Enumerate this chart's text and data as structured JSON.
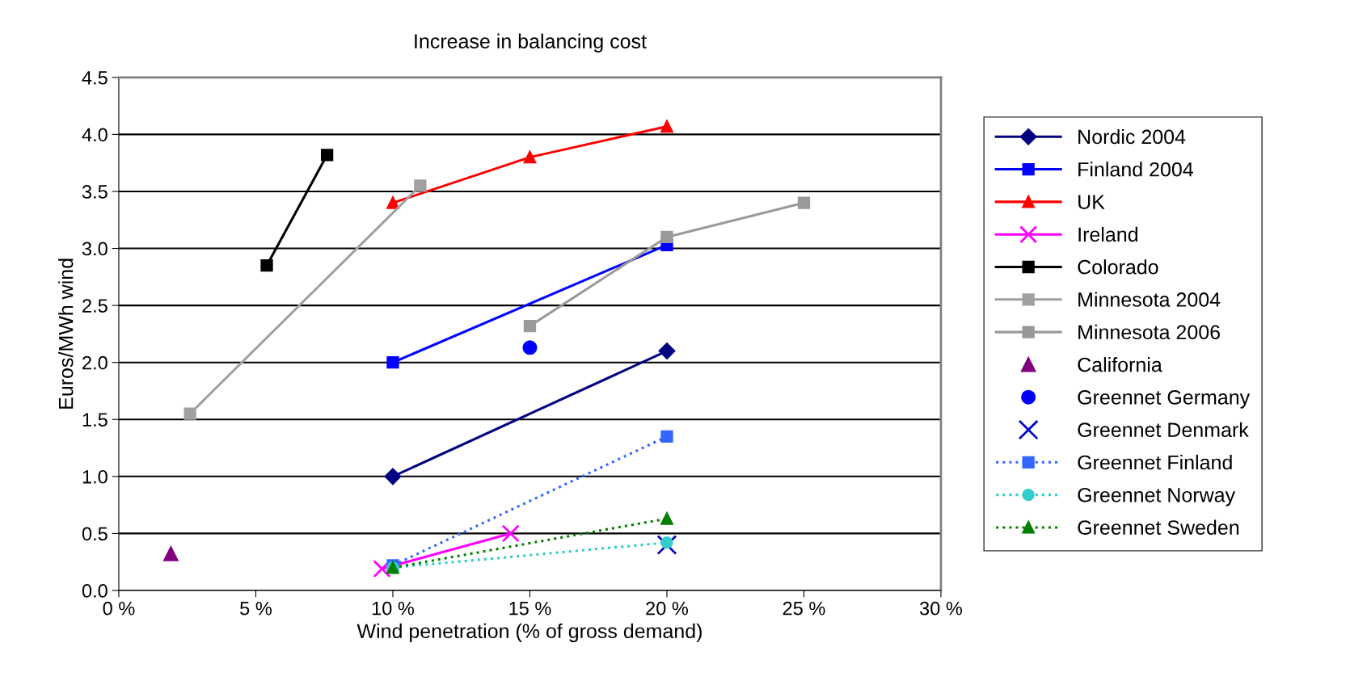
{
  "chart_data": {
    "type": "line",
    "title": "Increase in balancing cost",
    "xlabel": "Wind penetration (% of gross demand)",
    "ylabel": "Euros/MWh wind",
    "xlim": [
      0,
      30
    ],
    "xticks": [
      {
        "value": 0,
        "label": "0 %"
      },
      {
        "value": 5,
        "label": "5 %"
      },
      {
        "value": 10,
        "label": "10 %"
      },
      {
        "value": 15,
        "label": "15 %"
      },
      {
        "value": 20,
        "label": "20 %"
      },
      {
        "value": 25,
        "label": "25 %"
      },
      {
        "value": 30,
        "label": "30 %"
      }
    ],
    "ylim": [
      0,
      4.5
    ],
    "yticks": [
      {
        "value": 0,
        "label": "0.0"
      },
      {
        "value": 0.5,
        "label": "0.5"
      },
      {
        "value": 1,
        "label": "1.0"
      },
      {
        "value": 1.5,
        "label": "1.5"
      },
      {
        "value": 2,
        "label": "2.0"
      },
      {
        "value": 2.5,
        "label": "2.5"
      },
      {
        "value": 3,
        "label": "3.0"
      },
      {
        "value": 3.5,
        "label": "3.5"
      },
      {
        "value": 4,
        "label": "4.0"
      },
      {
        "value": 4.5,
        "label": "4.5"
      }
    ],
    "grid": "y",
    "legend": "right",
    "series": [
      {
        "name": "Nordic 2004",
        "color": "#000080",
        "marker": "diamond",
        "line_style": "solid",
        "x": [
          10,
          20
        ],
        "values": [
          1.0,
          2.1
        ]
      },
      {
        "name": "Finland 2004",
        "color": "#0000ff",
        "marker": "square",
        "line_style": "solid",
        "x": [
          10,
          20
        ],
        "values": [
          2.0,
          3.03
        ]
      },
      {
        "name": "UK",
        "color": "#ff0000",
        "marker": "triangle",
        "line_style": "solid",
        "x": [
          10,
          15,
          20
        ],
        "values": [
          3.4,
          3.8,
          4.07
        ]
      },
      {
        "name": "Ireland",
        "color": "#ff00ff",
        "marker": "cross",
        "line_style": "solid",
        "x": [
          9.6,
          14.3
        ],
        "values": [
          0.19,
          0.5
        ]
      },
      {
        "name": "Colorado",
        "color": "#000000",
        "marker": "square",
        "line_style": "solid",
        "x": [
          5.4,
          7.6
        ],
        "values": [
          2.85,
          3.82
        ]
      },
      {
        "name": "Minnesota 2004",
        "color": "#a0a0a0",
        "marker": "square",
        "line_style": "solid",
        "x": [
          2.6,
          11.0
        ],
        "values": [
          1.55,
          3.55
        ]
      },
      {
        "name": "Minnesota 2006",
        "color": "#999999",
        "marker": "square",
        "line_style": "solid",
        "x": [
          15,
          20,
          25
        ],
        "values": [
          2.32,
          3.1,
          3.4
        ]
      },
      {
        "name": "California",
        "color": "#800080",
        "type": "scatter",
        "marker": "triangle",
        "x": [
          1.9
        ],
        "values": [
          0.32
        ]
      },
      {
        "name": "Greennet Germany",
        "color": "#0000ff",
        "type": "scatter",
        "marker": "circle",
        "x": [
          15
        ],
        "values": [
          2.13
        ]
      },
      {
        "name": "Greennet Denmark",
        "color": "#0000cc",
        "type": "scatter",
        "marker": "cross",
        "x": [
          20
        ],
        "values": [
          0.4
        ]
      },
      {
        "name": "Greennet Finland",
        "color": "#3366ff",
        "marker": "square",
        "line_style": "dotted",
        "x": [
          10,
          20
        ],
        "values": [
          0.22,
          1.35
        ]
      },
      {
        "name": "Greennet Norway",
        "color": "#33cccc",
        "marker": "circle",
        "line_style": "dotted",
        "x": [
          10,
          20
        ],
        "values": [
          0.2,
          0.42
        ]
      },
      {
        "name": "Greennet Sweden",
        "color": "#008000",
        "marker": "triangle",
        "line_style": "dotted",
        "x": [
          10,
          20
        ],
        "values": [
          0.2,
          0.63
        ]
      }
    ]
  }
}
